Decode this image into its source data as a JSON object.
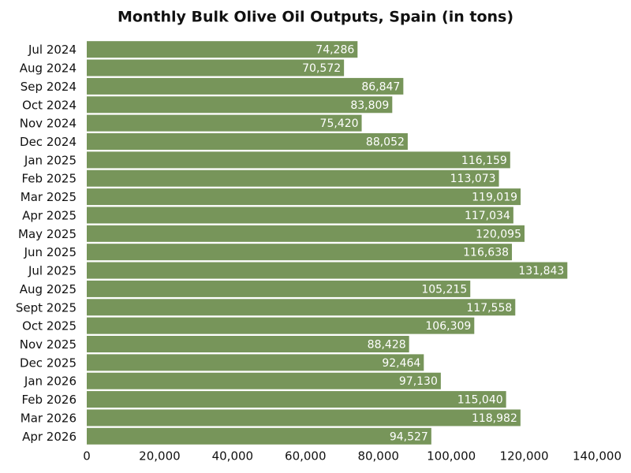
{
  "chart_data": {
    "type": "bar",
    "orientation": "horizontal",
    "title": "Monthly Bulk Olive Oil Outputs, Spain (in tons)",
    "categories": [
      "Jul 2024",
      "Aug 2024",
      "Sep 2024",
      "Oct 2024",
      "Nov 2024",
      "Dec 2024",
      "Jan 2025",
      "Feb 2025",
      "Mar 2025",
      "Apr 2025",
      "May 2025",
      "Jun 2025",
      "Jul 2025",
      "Aug 2025",
      "Sept 2025",
      "Oct 2025",
      "Nov 2025",
      "Dec 2025",
      "Jan 2026",
      "Feb 2026",
      "Mar 2026",
      "Apr 2026"
    ],
    "values": [
      74286,
      70572,
      86847,
      83809,
      75420,
      88052,
      116159,
      113073,
      119019,
      117034,
      120095,
      116638,
      131843,
      105215,
      117558,
      106309,
      88428,
      92464,
      97130,
      115040,
      118982,
      94527
    ],
    "value_labels": [
      "74,286",
      "70,572",
      "86,847",
      "83,809",
      "75,420",
      "88,052",
      "116,159",
      "113,073",
      "119,019",
      "117,034",
      "120,095",
      "116,638",
      "131,843",
      "105,215",
      "117,558",
      "106,309",
      "88,428",
      "92,464",
      "97,130",
      "115,040",
      "118,982",
      "94,527"
    ],
    "color": "#77955a",
    "xlim": [
      0,
      140000
    ],
    "xticks": [
      0,
      {
        "value": 20000,
        "label": "20,000"
      },
      {
        "value": 40000,
        "label": "40,000"
      },
      {
        "value": 60000,
        "label": "60,000"
      },
      {
        "value": 80000,
        "label": "80,000"
      },
      {
        "value": 100000,
        "label": "100,000"
      },
      {
        "value": 120000,
        "label": "120,000"
      },
      {
        "value": 140000,
        "label": "140,000"
      }
    ],
    "grid": false
  }
}
